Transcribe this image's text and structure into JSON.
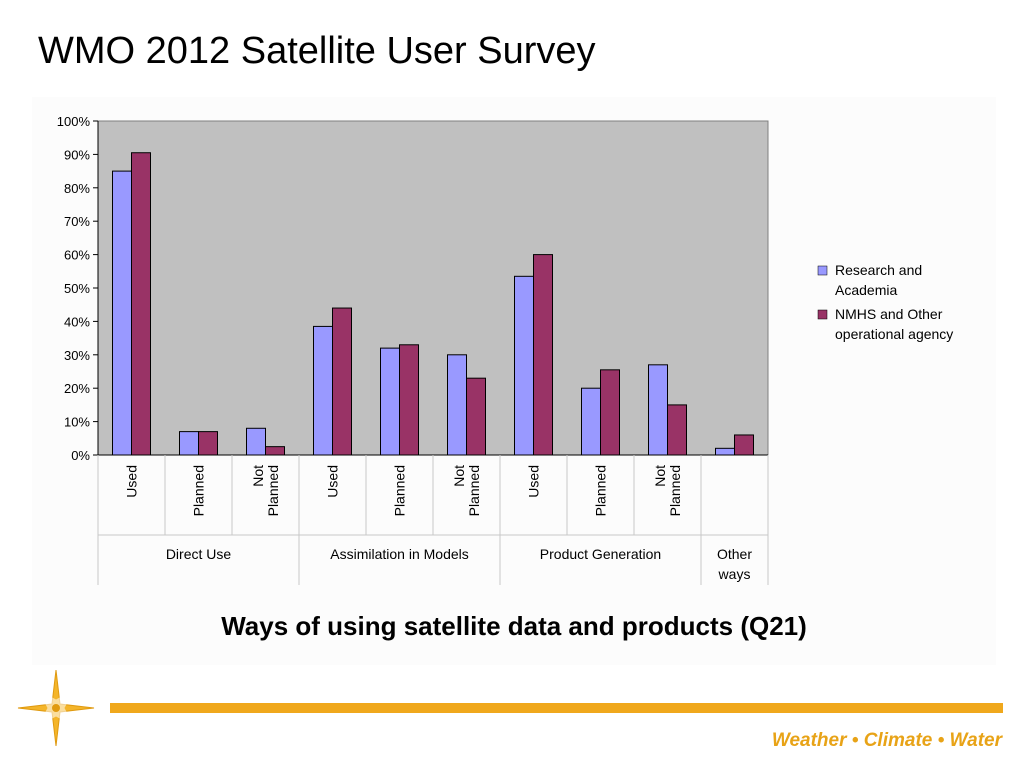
{
  "slide": {
    "title": "WMO 2012 Satellite User Survey",
    "footer_tagline": "Weather • Climate • Water",
    "logo_icon": "wmo-star-logo"
  },
  "colors": {
    "accent": "#f0a81c",
    "plot_background": "#c0c0c0",
    "series_1": "#9999ff",
    "series_2": "#993366",
    "tagline": "#e8a317"
  },
  "chart_data": {
    "type": "bar",
    "title": "Ways of using satellite data and products (Q21)",
    "categories": [
      "Used",
      "Planned",
      "Not Planned",
      "Used",
      "Planned",
      "Not Planned",
      "Used",
      "Planned",
      "Not Planned",
      ""
    ],
    "groups": [
      {
        "label": "Direct Use",
        "categories": 3
      },
      {
        "label": "Assimilation in Models",
        "categories": 3
      },
      {
        "label": "Product Generation",
        "categories": 3
      },
      {
        "label": "Other ways",
        "categories": 1
      }
    ],
    "series": [
      {
        "name": "Research and Academia",
        "color": "#9999ff",
        "values": [
          85,
          7,
          8,
          38.5,
          32,
          30,
          53.5,
          20,
          27,
          2
        ]
      },
      {
        "name": "NMHS and Other operational agency",
        "color": "#993366",
        "values": [
          90.5,
          7,
          2.5,
          44,
          33,
          23,
          60,
          25.5,
          15,
          6
        ]
      }
    ],
    "ylim": [
      0,
      100
    ],
    "yticks": [
      "0%",
      "10%",
      "20%",
      "30%",
      "40%",
      "50%",
      "60%",
      "70%",
      "80%",
      "90%",
      "100%"
    ],
    "grid": false,
    "legend_position": "right"
  }
}
